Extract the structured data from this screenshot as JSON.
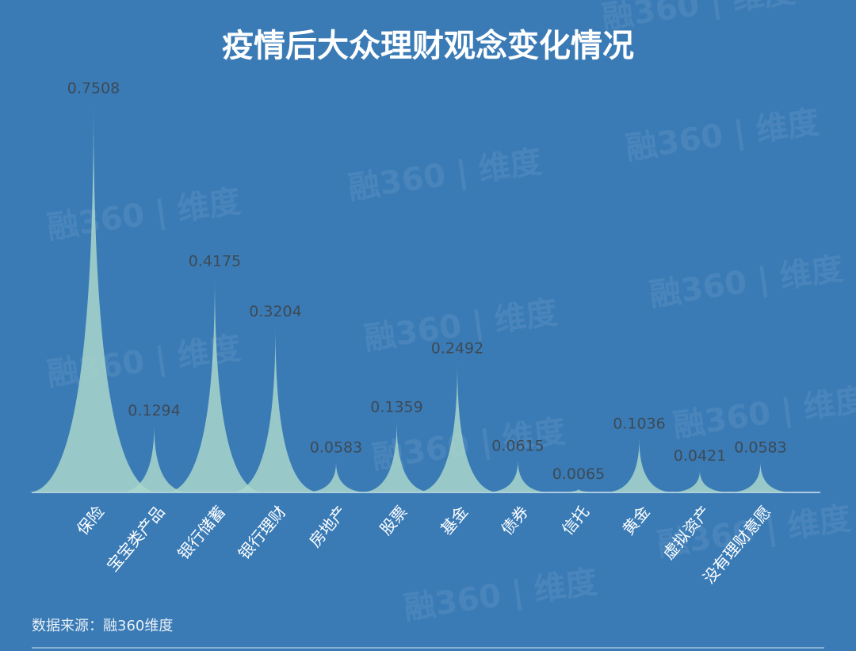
{
  "chart_data": {
    "type": "spike",
    "title": "疫情后大众理财观念变化情况",
    "categories": [
      "保险",
      "宝宝类产品",
      "银行储蓄",
      "银行理财",
      "房地产",
      "股票",
      "基金",
      "债券",
      "信托",
      "黄金",
      "虚拟资产",
      "没有理财意愿"
    ],
    "values": [
      0.7508,
      0.1294,
      0.4175,
      0.3204,
      0.0583,
      0.1359,
      0.2492,
      0.0615,
      0.0065,
      0.1036,
      0.0421,
      0.0583
    ],
    "color": "#a9d6cb",
    "source": "数据来源：融360维度",
    "watermark": "融360 | 维度"
  }
}
